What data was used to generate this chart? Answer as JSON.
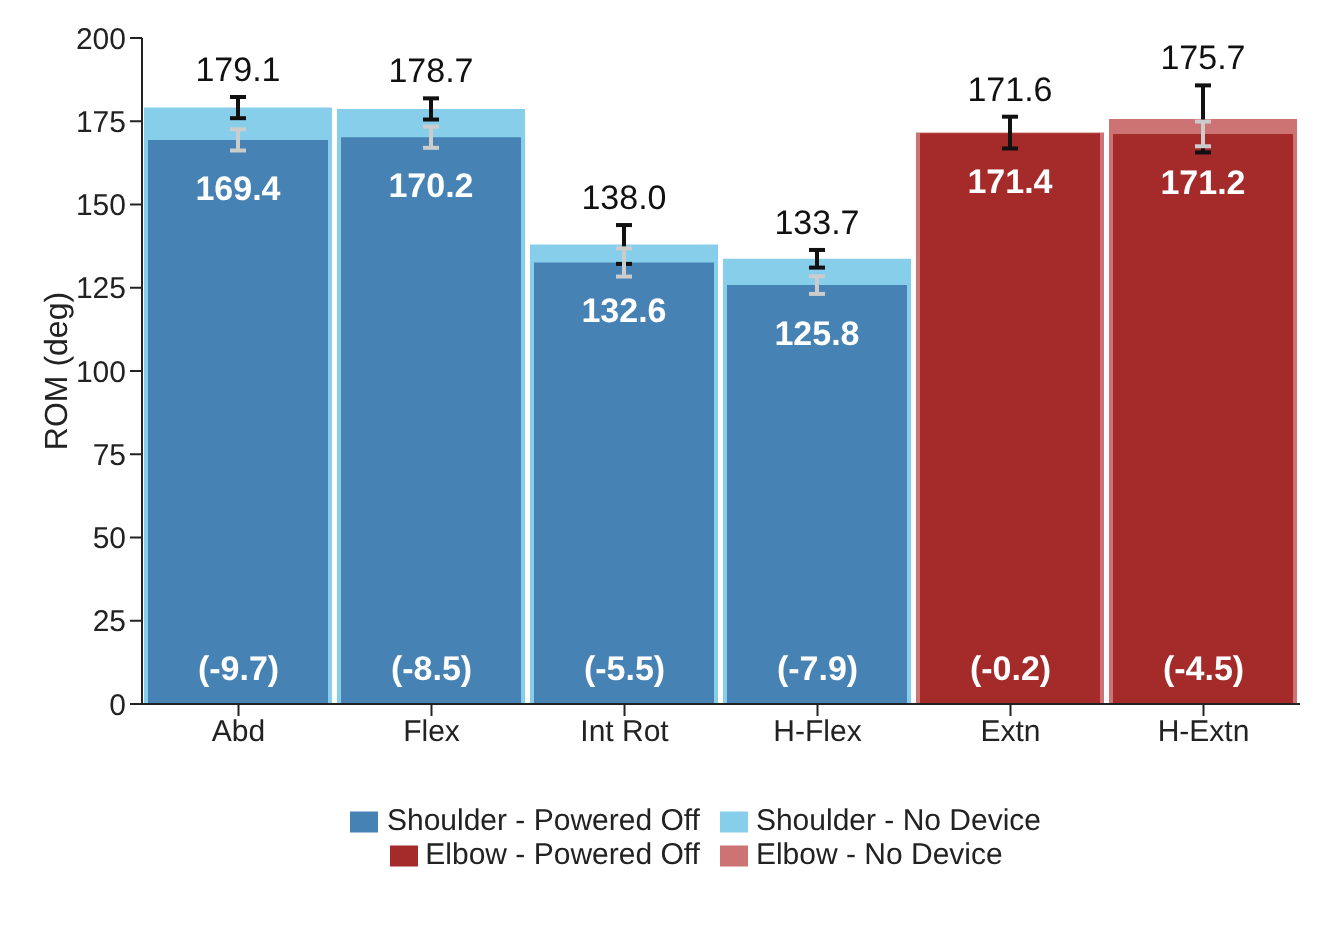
{
  "chart_data": {
    "type": "bar",
    "ylabel": "ROM (deg)",
    "categories": [
      "Abd",
      "Flex",
      "Int Rot",
      "H-Flex",
      "Extn",
      "H-Extn"
    ],
    "series": [
      {
        "name": "Shoulder - Powered Off",
        "color": "#4682b4",
        "values": [
          169.4,
          170.2,
          132.6,
          125.8,
          null,
          null
        ],
        "errors": [
          3,
          3,
          4,
          2.5,
          null,
          null
        ],
        "value_labels": [
          "169.4",
          "170.2",
          "132.6",
          "125.8",
          null,
          null
        ]
      },
      {
        "name": "Shoulder - No Device",
        "color": "#87ceeb",
        "values": [
          179.1,
          178.7,
          138.0,
          133.7,
          null,
          null
        ],
        "errors": [
          3,
          3,
          5.5,
          2.5,
          null,
          null
        ],
        "value_labels": [
          "179.1",
          "178.7",
          "138.0",
          "133.7",
          null,
          null
        ]
      },
      {
        "name": "Elbow - Powered Off",
        "color": "#a52a2a",
        "values": [
          null,
          null,
          null,
          null,
          171.4,
          171.2
        ],
        "errors": [
          null,
          null,
          null,
          null,
          null,
          3.5
        ],
        "value_labels": [
          null,
          null,
          null,
          null,
          "171.4",
          "171.2"
        ]
      },
      {
        "name": "Elbow - No Device",
        "color": "#cd7373",
        "values": [
          null,
          null,
          null,
          null,
          171.6,
          175.7
        ],
        "errors": [
          null,
          null,
          null,
          null,
          4.5,
          9.5
        ],
        "value_labels": [
          null,
          null,
          null,
          null,
          "171.6",
          "175.7"
        ]
      }
    ],
    "ylim": [
      0,
      200
    ],
    "yticks": [
      0,
      25,
      50,
      75,
      100,
      125,
      150,
      175,
      200
    ],
    "grid": false,
    "legend": "bottom",
    "annotations": [
      "(-9.7)",
      "(-8.5)",
      "(-5.5)",
      "(-7.9)",
      "(-0.2)",
      "(-4.5)"
    ]
  }
}
